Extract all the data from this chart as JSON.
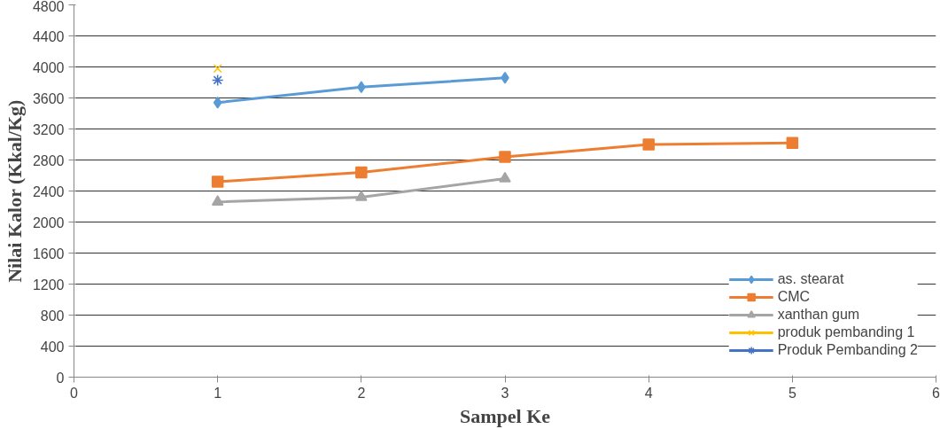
{
  "chart_data": {
    "type": "line",
    "xlabel": "Sampel Ke",
    "ylabel": "Nilai Kalor (Kkal/Kg)",
    "xlim": [
      0,
      6
    ],
    "xticks": [
      0,
      1,
      2,
      3,
      4,
      5,
      6
    ],
    "ylim": [
      0,
      4800
    ],
    "yticks": [
      0,
      400,
      800,
      1200,
      1600,
      2000,
      2400,
      2800,
      3200,
      3600,
      4000,
      4400,
      4800
    ],
    "grid": "y",
    "legend": "bottom right",
    "line_style": "solid",
    "series": [
      {
        "name": "as. stearat",
        "color": "#5b9bd5",
        "marker": "diamond",
        "x": [
          1,
          2,
          3
        ],
        "values": [
          3540,
          3740,
          3860
        ]
      },
      {
        "name": "CMC",
        "color": "#ed7d31",
        "marker": "square",
        "x": [
          1,
          2,
          3,
          4,
          5
        ],
        "values": [
          2520,
          2640,
          2840,
          3000,
          3020
        ]
      },
      {
        "name": "xanthan gum",
        "color": "#a5a5a5",
        "marker": "triangle",
        "x": [
          1,
          2,
          3
        ],
        "values": [
          2260,
          2320,
          2560
        ]
      },
      {
        "name": "produk pembanding 1",
        "color": "#ffc000",
        "marker": "cross",
        "x": [
          1
        ],
        "values": [
          3980
        ]
      },
      {
        "name": "Produk Pembanding 2",
        "color": "#4472c4",
        "marker": "cross",
        "x": [
          1
        ],
        "values": [
          3830
        ]
      }
    ]
  }
}
